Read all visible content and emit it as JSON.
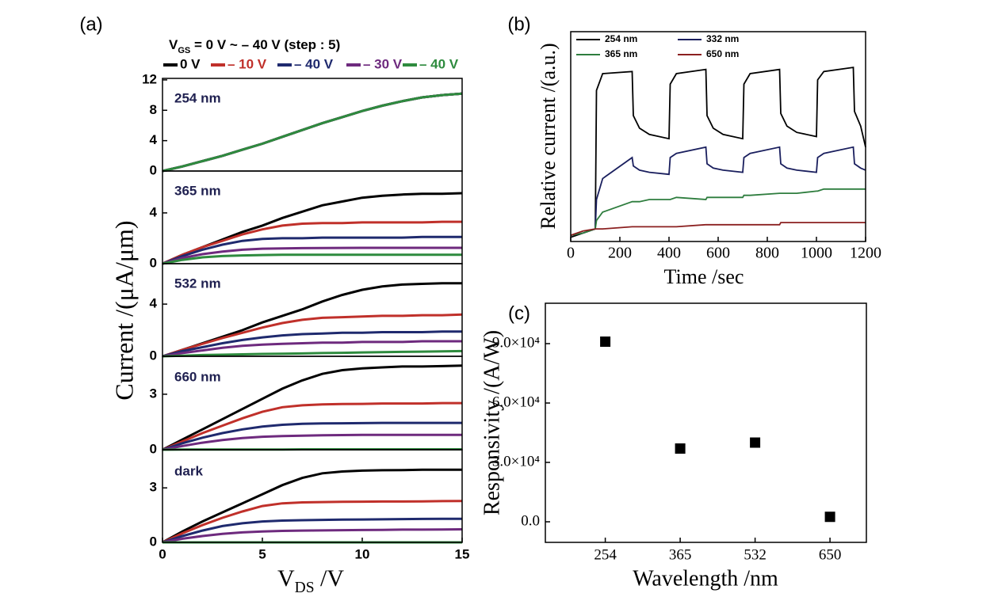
{
  "chart_data": [
    {
      "type": "line",
      "panel_label": "(a)",
      "legend_title": [
        "V",
        "GS",
        " = 0 V ~ – 40 V (step : 5)"
      ],
      "annotation": "254 nm",
      "ylabel": "Current /(μA/μm)",
      "x": [
        0,
        1,
        2,
        3,
        4,
        5,
        6,
        7,
        8,
        9,
        10,
        11,
        12,
        13,
        14,
        15
      ],
      "xlim": [
        0,
        15
      ],
      "ylim": [
        0,
        12.2
      ],
      "yticks": [
        0,
        4,
        8,
        12
      ],
      "series": [
        {
          "name": "0 V",
          "color": "#000000",
          "values": [
            0,
            0.6,
            1.3,
            2.0,
            2.8,
            3.6,
            4.5,
            5.4,
            6.3,
            7.1,
            7.9,
            8.6,
            9.2,
            9.7,
            10.0,
            10.2
          ]
        },
        {
          "name": "– 10 V",
          "color": "#c0302a",
          "values": [
            0,
            0.6,
            1.3,
            2.0,
            2.8,
            3.6,
            4.5,
            5.4,
            6.3,
            7.1,
            7.9,
            8.6,
            9.2,
            9.7,
            10.0,
            10.2
          ]
        },
        {
          "name": "– 40 V",
          "color": "#1f2a6e",
          "values": [
            0,
            0.6,
            1.3,
            2.0,
            2.8,
            3.6,
            4.5,
            5.4,
            6.3,
            7.1,
            7.9,
            8.6,
            9.2,
            9.7,
            10.0,
            10.2
          ]
        },
        {
          "name": "– 30 V",
          "color": "#6e2a7e",
          "values": [
            0,
            0.6,
            1.3,
            2.0,
            2.8,
            3.6,
            4.5,
            5.4,
            6.3,
            7.1,
            7.9,
            8.6,
            9.2,
            9.7,
            10.0,
            10.2
          ]
        },
        {
          "name": "– 40 V",
          "color": "#2e8b3e",
          "values": [
            0,
            0.6,
            1.3,
            2.0,
            2.8,
            3.6,
            4.5,
            5.4,
            6.3,
            7.1,
            7.9,
            8.6,
            9.2,
            9.7,
            10.0,
            10.2
          ]
        }
      ]
    },
    {
      "type": "line",
      "annotation": "365 nm",
      "x": [
        0,
        1,
        2,
        3,
        4,
        5,
        6,
        7,
        8,
        9,
        10,
        11,
        12,
        13,
        14,
        15
      ],
      "xlim": [
        0,
        15
      ],
      "ylim": [
        0,
        7.3
      ],
      "yticks": [
        0,
        4
      ],
      "series": [
        {
          "color": "#000000",
          "values": [
            0,
            0.7,
            1.3,
            1.9,
            2.5,
            3.0,
            3.6,
            4.1,
            4.6,
            4.9,
            5.2,
            5.35,
            5.45,
            5.5,
            5.5,
            5.55
          ]
        },
        {
          "color": "#c0302a",
          "values": [
            0,
            0.7,
            1.3,
            1.8,
            2.3,
            2.7,
            3.0,
            3.15,
            3.2,
            3.2,
            3.25,
            3.25,
            3.25,
            3.25,
            3.3,
            3.3
          ]
        },
        {
          "color": "#1f2a6e",
          "values": [
            0,
            0.6,
            1.1,
            1.5,
            1.8,
            1.95,
            2.0,
            2.0,
            2.05,
            2.05,
            2.05,
            2.05,
            2.05,
            2.1,
            2.1,
            2.1
          ]
        },
        {
          "color": "#6e2a7e",
          "values": [
            0,
            0.45,
            0.75,
            0.95,
            1.1,
            1.18,
            1.2,
            1.22,
            1.23,
            1.24,
            1.25,
            1.25,
            1.25,
            1.25,
            1.25,
            1.25
          ]
        },
        {
          "color": "#2e8b3e",
          "values": [
            0,
            0.3,
            0.5,
            0.6,
            0.65,
            0.68,
            0.7,
            0.7,
            0.7,
            0.7,
            0.7,
            0.7,
            0.7,
            0.7,
            0.7,
            0.7
          ]
        }
      ]
    },
    {
      "type": "line",
      "annotation": "532 nm",
      "x": [
        0,
        1,
        2,
        3,
        4,
        5,
        6,
        7,
        8,
        9,
        10,
        11,
        12,
        13,
        14,
        15
      ],
      "xlim": [
        0,
        15
      ],
      "ylim": [
        0,
        7.1
      ],
      "yticks": [
        0,
        4
      ],
      "series": [
        {
          "color": "#000000",
          "values": [
            0,
            0.5,
            1.0,
            1.5,
            2.0,
            2.6,
            3.1,
            3.6,
            4.2,
            4.7,
            5.1,
            5.35,
            5.5,
            5.55,
            5.6,
            5.6
          ]
        },
        {
          "color": "#c0302a",
          "values": [
            0,
            0.5,
            0.95,
            1.4,
            1.8,
            2.2,
            2.55,
            2.8,
            2.95,
            3.0,
            3.05,
            3.1,
            3.1,
            3.15,
            3.15,
            3.2
          ]
        },
        {
          "color": "#1f2a6e",
          "values": [
            0,
            0.4,
            0.7,
            1.0,
            1.25,
            1.45,
            1.6,
            1.7,
            1.75,
            1.8,
            1.8,
            1.85,
            1.85,
            1.85,
            1.9,
            1.9
          ]
        },
        {
          "color": "#6e2a7e",
          "values": [
            0,
            0.25,
            0.45,
            0.65,
            0.8,
            0.9,
            0.95,
            1.0,
            1.05,
            1.05,
            1.1,
            1.1,
            1.1,
            1.15,
            1.15,
            1.15
          ]
        },
        {
          "color": "#2e8b3e",
          "values": [
            0,
            0.05,
            0.1,
            0.12,
            0.15,
            0.18,
            0.2,
            0.22,
            0.25,
            0.27,
            0.3,
            0.32,
            0.34,
            0.36,
            0.38,
            0.4
          ]
        }
      ]
    },
    {
      "type": "line",
      "annotation": "660 nm",
      "x": [
        0,
        1,
        2,
        3,
        4,
        5,
        6,
        7,
        8,
        9,
        10,
        11,
        12,
        13,
        14,
        15
      ],
      "xlim": [
        0,
        15
      ],
      "ylim": [
        0,
        5.05
      ],
      "yticks": [
        0,
        3
      ],
      "series": [
        {
          "color": "#000000",
          "values": [
            0,
            0.55,
            1.1,
            1.65,
            2.2,
            2.75,
            3.3,
            3.75,
            4.1,
            4.3,
            4.4,
            4.45,
            4.5,
            4.5,
            4.52,
            4.55
          ]
        },
        {
          "color": "#c0302a",
          "values": [
            0,
            0.45,
            0.9,
            1.3,
            1.7,
            2.05,
            2.3,
            2.4,
            2.45,
            2.47,
            2.48,
            2.5,
            2.5,
            2.5,
            2.52,
            2.52
          ]
        },
        {
          "color": "#1f2a6e",
          "values": [
            0,
            0.35,
            0.65,
            0.9,
            1.1,
            1.25,
            1.35,
            1.4,
            1.42,
            1.43,
            1.44,
            1.45,
            1.45,
            1.45,
            1.45,
            1.45
          ]
        },
        {
          "color": "#6e2a7e",
          "values": [
            0,
            0.2,
            0.38,
            0.52,
            0.63,
            0.7,
            0.74,
            0.76,
            0.78,
            0.79,
            0.8,
            0.8,
            0.8,
            0.8,
            0.8,
            0.8
          ]
        },
        {
          "color": "#2e8b3e",
          "values": [
            0,
            0.01,
            0.01,
            0.01,
            0.01,
            0.01,
            0.01,
            0.02,
            0.02,
            0.02,
            0.02,
            0.02,
            0.02,
            0.02,
            0.02,
            0.02
          ]
        }
      ]
    },
    {
      "type": "line",
      "annotation": "dark",
      "xlabel": [
        "V",
        "DS",
        " /V"
      ],
      "x": [
        0,
        1,
        2,
        3,
        4,
        5,
        6,
        7,
        8,
        9,
        10,
        11,
        12,
        13,
        14,
        15
      ],
      "xlim": [
        0,
        15
      ],
      "xticks": [
        0,
        5,
        10,
        15
      ],
      "ylim": [
        0,
        5.1
      ],
      "yticks": [
        0,
        3
      ],
      "series": [
        {
          "color": "#000000",
          "values": [
            0,
            0.6,
            1.15,
            1.65,
            2.15,
            2.65,
            3.15,
            3.55,
            3.8,
            3.9,
            3.95,
            3.97,
            3.98,
            4.0,
            4.0,
            4.0
          ]
        },
        {
          "color": "#c0302a",
          "values": [
            0,
            0.5,
            0.95,
            1.35,
            1.7,
            2.0,
            2.15,
            2.2,
            2.22,
            2.23,
            2.24,
            2.25,
            2.25,
            2.26,
            2.27,
            2.28
          ]
        },
        {
          "color": "#1f2a6e",
          "values": [
            0,
            0.35,
            0.65,
            0.9,
            1.05,
            1.15,
            1.2,
            1.22,
            1.24,
            1.25,
            1.26,
            1.27,
            1.28,
            1.29,
            1.3,
            1.3
          ]
        },
        {
          "color": "#6e2a7e",
          "values": [
            0,
            0.2,
            0.35,
            0.47,
            0.55,
            0.6,
            0.63,
            0.65,
            0.66,
            0.67,
            0.68,
            0.69,
            0.7,
            0.7,
            0.71,
            0.72
          ]
        },
        {
          "color": "#2e8b3e",
          "values": [
            0,
            0,
            0,
            0,
            0,
            0,
            0,
            0,
            0,
            0,
            0,
            0,
            0,
            0,
            0,
            0
          ]
        }
      ]
    },
    {
      "type": "line",
      "panel_label": "(b)",
      "xlabel": "Time /sec",
      "ylabel": "Relative current /(a.u.)",
      "x": [
        0,
        50,
        100,
        105,
        130,
        250,
        255,
        280,
        320,
        400,
        405,
        430,
        550,
        555,
        580,
        620,
        700,
        705,
        730,
        850,
        855,
        880,
        920,
        1000,
        1005,
        1030,
        1150,
        1155,
        1180,
        1200
      ],
      "xlim": [
        0,
        1200
      ],
      "xticks": [
        0,
        200,
        400,
        600,
        800,
        1000,
        1200
      ],
      "ylim": [
        0,
        1
      ],
      "series": [
        {
          "name": "254 nm",
          "color": "#000000",
          "values": [
            0.02,
            0.04,
            0.06,
            0.72,
            0.8,
            0.81,
            0.6,
            0.54,
            0.51,
            0.49,
            0.75,
            0.8,
            0.82,
            0.6,
            0.54,
            0.51,
            0.49,
            0.75,
            0.8,
            0.82,
            0.61,
            0.55,
            0.52,
            0.5,
            0.77,
            0.81,
            0.83,
            0.62,
            0.55,
            0.45
          ]
        },
        {
          "name": "332 nm",
          "color": "#1a1f5e",
          "values": [
            0.03,
            0.04,
            0.06,
            0.2,
            0.3,
            0.4,
            0.36,
            0.34,
            0.33,
            0.32,
            0.4,
            0.42,
            0.45,
            0.37,
            0.35,
            0.34,
            0.33,
            0.4,
            0.42,
            0.45,
            0.37,
            0.35,
            0.34,
            0.33,
            0.4,
            0.42,
            0.45,
            0.37,
            0.35,
            0.34
          ]
        },
        {
          "name": "365 nm",
          "color": "#2e7d3e",
          "values": [
            0.03,
            0.04,
            0.06,
            0.1,
            0.14,
            0.19,
            0.19,
            0.19,
            0.2,
            0.2,
            0.2,
            0.21,
            0.2,
            0.21,
            0.21,
            0.21,
            0.21,
            0.22,
            0.22,
            0.23,
            0.23,
            0.23,
            0.23,
            0.24,
            0.24,
            0.25,
            0.25,
            0.25,
            0.25,
            0.25
          ]
        },
        {
          "name": "650 nm",
          "color": "#8b2020",
          "values": [
            0.03,
            0.05,
            0.06,
            0.06,
            0.06,
            0.07,
            0.07,
            0.07,
            0.07,
            0.07,
            0.07,
            0.07,
            0.08,
            0.08,
            0.08,
            0.08,
            0.08,
            0.08,
            0.08,
            0.08,
            0.09,
            0.09,
            0.09,
            0.09,
            0.09,
            0.09,
            0.09,
            0.09,
            0.09,
            0.09
          ]
        }
      ]
    },
    {
      "type": "scatter",
      "panel_label": "(c)",
      "xlabel": "Wavelength /nm",
      "ylabel": "Responsivity /(A/W)",
      "categories": [
        "254",
        "365",
        "532",
        "650"
      ],
      "values": [
        91000,
        37000,
        40000,
        2500
      ],
      "color": "#000000",
      "ylim": [
        -10400,
        110400
      ],
      "yticks": [
        {
          "value": 0,
          "label": "0.0"
        },
        {
          "value": 30000,
          "label": "3.0×10⁴"
        },
        {
          "value": 60000,
          "label": "6.0×10⁴"
        },
        {
          "value": 90000,
          "label": "9.0×10⁴"
        }
      ]
    }
  ]
}
